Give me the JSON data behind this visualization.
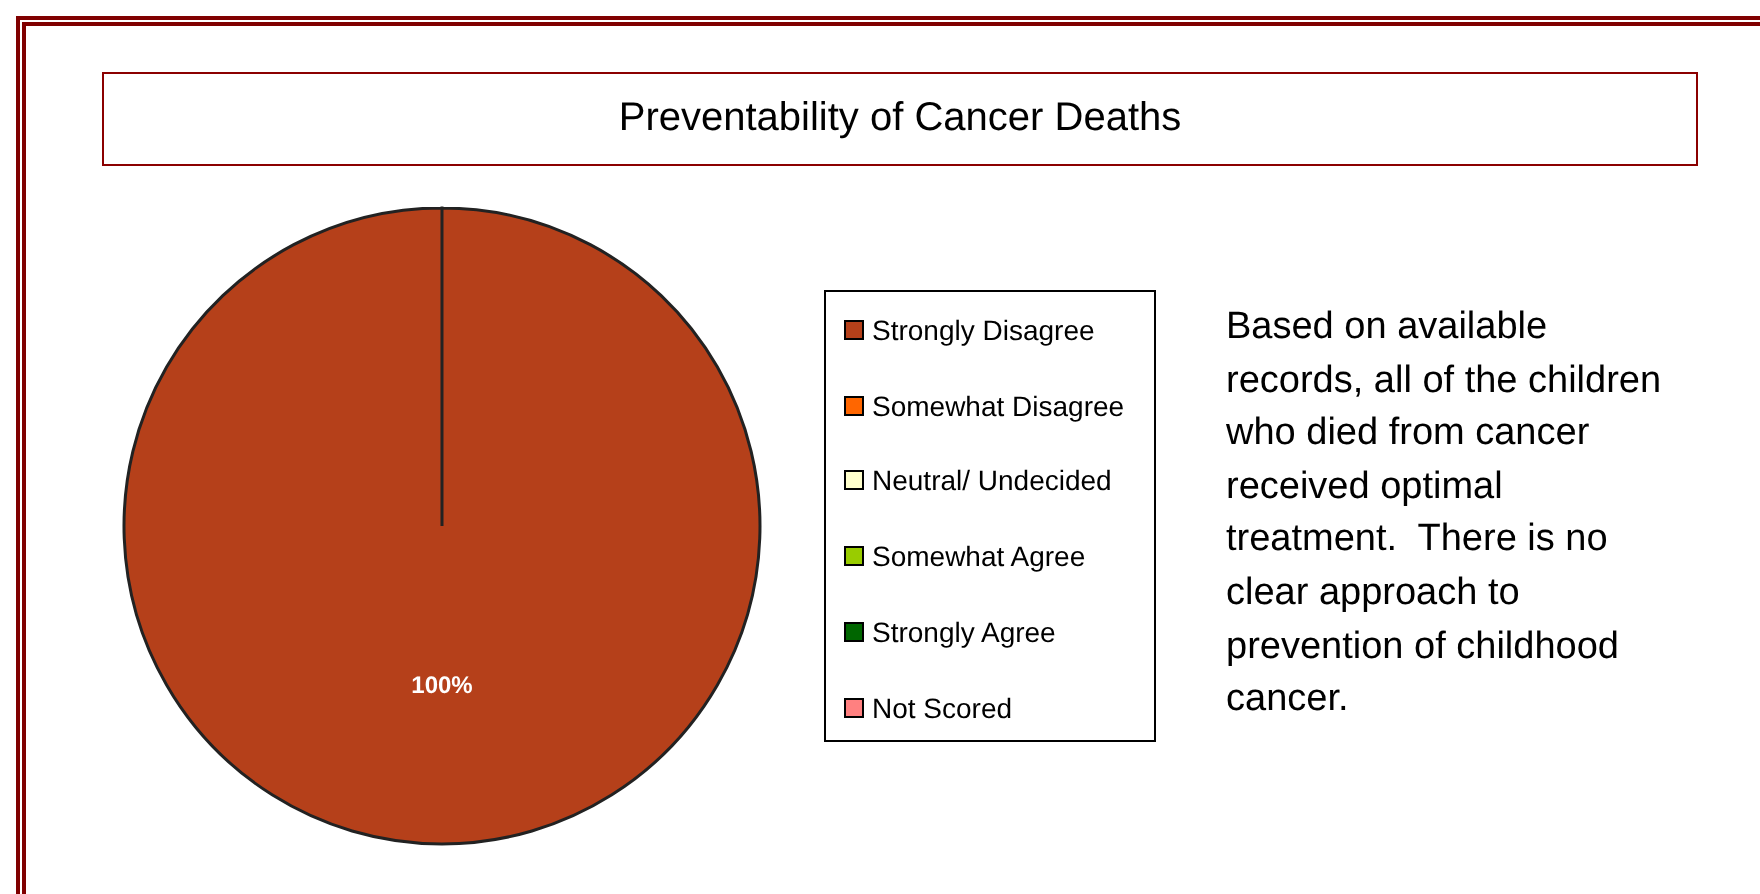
{
  "chart_data": {
    "type": "pie",
    "title": "Preventability of Cancer Deaths",
    "categories": [
      "Strongly Disagree",
      "Somewhat Disagree",
      "Neutral/ Undecided",
      "Somewhat Agree",
      "Strongly Agree",
      "Not Scored"
    ],
    "values": [
      100,
      0,
      0,
      0,
      0,
      0
    ],
    "colors": [
      "#b5401a",
      "#ff6600",
      "#ffffcc",
      "#99cc00",
      "#006600",
      "#ff8080"
    ],
    "value_labels": [
      "100%",
      null,
      null,
      null,
      null,
      null
    ],
    "legend": "right",
    "annotations": [
      "Based on available records, all of the children who died from cancer received optimal treatment.  There is no clear approach to prevention of childhood cancer."
    ]
  }
}
